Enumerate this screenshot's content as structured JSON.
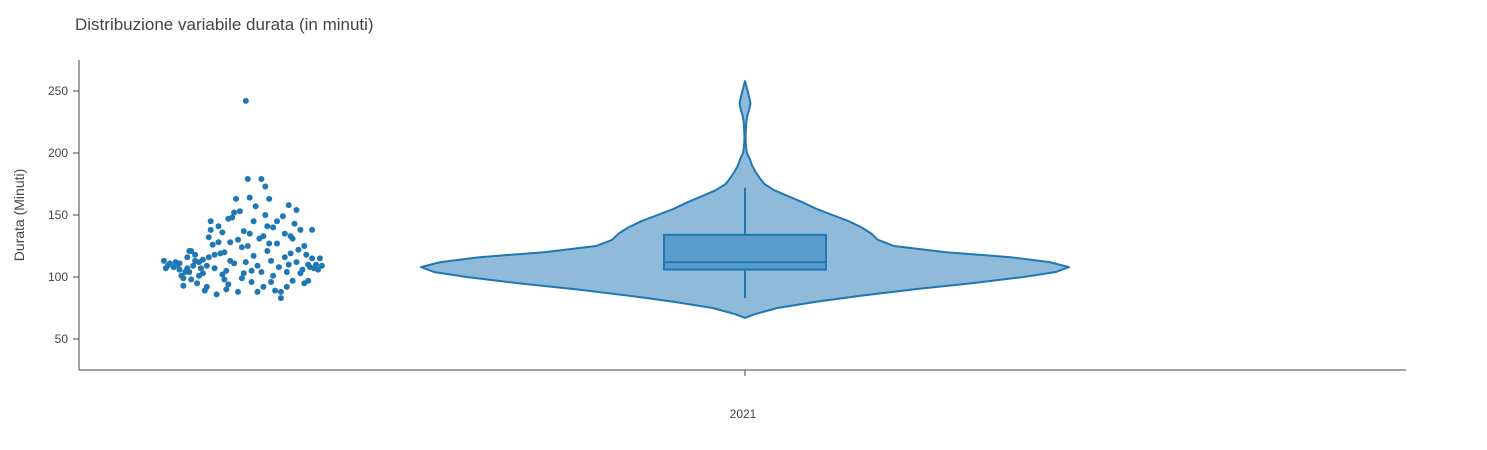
{
  "chart_data": {
    "type": "violin",
    "title": "Distribuzione variabile durata (in minuti)",
    "xlabel": "",
    "ylabel": "Durata (Minuti)",
    "categories": [
      "2021"
    ],
    "ylim": [
      25,
      275
    ],
    "yticks": [
      50,
      100,
      150,
      200,
      250
    ],
    "grid": false,
    "legend": "none",
    "colors": {
      "line": "#1f77b4",
      "violin_fill": "#8fbad9",
      "box_fill": "#5a9ccb",
      "points": "#1f77b4",
      "axis": "#444444"
    },
    "box": {
      "min": 83,
      "q1": 106,
      "median": 112,
      "q3": 134,
      "max": 172
    },
    "violin_density": [
      [
        67,
        0.0
      ],
      [
        70,
        0.03
      ],
      [
        75,
        0.1
      ],
      [
        80,
        0.22
      ],
      [
        85,
        0.36
      ],
      [
        90,
        0.52
      ],
      [
        95,
        0.7
      ],
      [
        100,
        0.86
      ],
      [
        104,
        0.96
      ],
      [
        108,
        1.0
      ],
      [
        112,
        0.94
      ],
      [
        116,
        0.82
      ],
      [
        120,
        0.62
      ],
      [
        125,
        0.46
      ],
      [
        130,
        0.41
      ],
      [
        135,
        0.39
      ],
      [
        140,
        0.36
      ],
      [
        145,
        0.32
      ],
      [
        150,
        0.27
      ],
      [
        155,
        0.22
      ],
      [
        160,
        0.18
      ],
      [
        165,
        0.135
      ],
      [
        170,
        0.09
      ],
      [
        175,
        0.06
      ],
      [
        180,
        0.045
      ],
      [
        185,
        0.032
      ],
      [
        190,
        0.022
      ],
      [
        195,
        0.015
      ],
      [
        200,
        0.006
      ],
      [
        205,
        0.003
      ],
      [
        210,
        0.002
      ],
      [
        215,
        0.002
      ],
      [
        220,
        0.003
      ],
      [
        225,
        0.004
      ],
      [
        230,
        0.007
      ],
      [
        235,
        0.013
      ],
      [
        240,
        0.017
      ],
      [
        245,
        0.013
      ],
      [
        250,
        0.008
      ],
      [
        255,
        0.003
      ],
      [
        258,
        0.0
      ]
    ],
    "points": [
      {
        "x": 0.02,
        "y": 113
      },
      {
        "x": 0.03,
        "y": 107
      },
      {
        "x": 0.04,
        "y": 109
      },
      {
        "x": 0.05,
        "y": 111
      },
      {
        "x": 0.07,
        "y": 108
      },
      {
        "x": 0.08,
        "y": 112
      },
      {
        "x": 0.09,
        "y": 110
      },
      {
        "x": 0.1,
        "y": 106
      },
      {
        "x": 0.11,
        "y": 101
      },
      {
        "x": 0.12,
        "y": 93
      },
      {
        "x": 0.13,
        "y": 104
      },
      {
        "x": 0.14,
        "y": 116
      },
      {
        "x": 0.15,
        "y": 121
      },
      {
        "x": 0.16,
        "y": 98
      },
      {
        "x": 0.17,
        "y": 109
      },
      {
        "x": 0.18,
        "y": 113
      },
      {
        "x": 0.19,
        "y": 95
      },
      {
        "x": 0.2,
        "y": 112
      },
      {
        "x": 0.21,
        "y": 107
      },
      {
        "x": 0.22,
        "y": 103
      },
      {
        "x": 0.23,
        "y": 89
      },
      {
        "x": 0.24,
        "y": 92
      },
      {
        "x": 0.25,
        "y": 132
      },
      {
        "x": 0.26,
        "y": 145
      },
      {
        "x": 0.27,
        "y": 126
      },
      {
        "x": 0.28,
        "y": 107
      },
      {
        "x": 0.29,
        "y": 86
      },
      {
        "x": 0.3,
        "y": 141
      },
      {
        "x": 0.31,
        "y": 119
      },
      {
        "x": 0.32,
        "y": 136
      },
      {
        "x": 0.33,
        "y": 98
      },
      {
        "x": 0.34,
        "y": 105
      },
      {
        "x": 0.35,
        "y": 94
      },
      {
        "x": 0.36,
        "y": 128
      },
      {
        "x": 0.37,
        "y": 148
      },
      {
        "x": 0.38,
        "y": 111
      },
      {
        "x": 0.39,
        "y": 163
      },
      {
        "x": 0.4,
        "y": 88
      },
      {
        "x": 0.41,
        "y": 153
      },
      {
        "x": 0.42,
        "y": 124
      },
      {
        "x": 0.43,
        "y": 103
      },
      {
        "x": 0.44,
        "y": 242
      },
      {
        "x": 0.45,
        "y": 179
      },
      {
        "x": 0.46,
        "y": 135
      },
      {
        "x": 0.47,
        "y": 96
      },
      {
        "x": 0.48,
        "y": 117
      },
      {
        "x": 0.49,
        "y": 157
      },
      {
        "x": 0.5,
        "y": 109
      },
      {
        "x": 0.51,
        "y": 131
      },
      {
        "x": 0.52,
        "y": 179
      },
      {
        "x": 0.53,
        "y": 92
      },
      {
        "x": 0.54,
        "y": 173
      },
      {
        "x": 0.55,
        "y": 121
      },
      {
        "x": 0.56,
        "y": 163
      },
      {
        "x": 0.57,
        "y": 113
      },
      {
        "x": 0.58,
        "y": 140
      },
      {
        "x": 0.59,
        "y": 89
      },
      {
        "x": 0.6,
        "y": 127
      },
      {
        "x": 0.61,
        "y": 108
      },
      {
        "x": 0.62,
        "y": 83
      },
      {
        "x": 0.63,
        "y": 149
      },
      {
        "x": 0.64,
        "y": 116
      },
      {
        "x": 0.65,
        "y": 104
      },
      {
        "x": 0.66,
        "y": 158
      },
      {
        "x": 0.67,
        "y": 133
      },
      {
        "x": 0.68,
        "y": 97
      },
      {
        "x": 0.69,
        "y": 143
      },
      {
        "x": 0.7,
        "y": 112
      },
      {
        "x": 0.71,
        "y": 122
      },
      {
        "x": 0.72,
        "y": 138
      },
      {
        "x": 0.73,
        "y": 106
      },
      {
        "x": 0.74,
        "y": 95
      },
      {
        "x": 0.75,
        "y": 118
      },
      {
        "x": 0.76,
        "y": 110
      },
      {
        "x": 0.77,
        "y": 108
      },
      {
        "x": 0.78,
        "y": 138
      },
      {
        "x": 0.79,
        "y": 107
      },
      {
        "x": 0.8,
        "y": 110
      },
      {
        "x": 0.81,
        "y": 106
      },
      {
        "x": 0.82,
        "y": 115
      },
      {
        "x": 0.83,
        "y": 109
      },
      {
        "x": 0.1,
        "y": 111
      },
      {
        "x": 0.12,
        "y": 99
      },
      {
        "x": 0.14,
        "y": 107
      },
      {
        "x": 0.16,
        "y": 121
      },
      {
        "x": 0.18,
        "y": 118
      },
      {
        "x": 0.2,
        "y": 101
      },
      {
        "x": 0.22,
        "y": 114
      },
      {
        "x": 0.24,
        "y": 109
      },
      {
        "x": 0.26,
        "y": 138
      },
      {
        "x": 0.28,
        "y": 118
      },
      {
        "x": 0.3,
        "y": 128
      },
      {
        "x": 0.32,
        "y": 102
      },
      {
        "x": 0.34,
        "y": 90
      },
      {
        "x": 0.36,
        "y": 113
      },
      {
        "x": 0.38,
        "y": 152
      },
      {
        "x": 0.4,
        "y": 130
      },
      {
        "x": 0.42,
        "y": 99
      },
      {
        "x": 0.44,
        "y": 112
      },
      {
        "x": 0.46,
        "y": 164
      },
      {
        "x": 0.48,
        "y": 145
      },
      {
        "x": 0.5,
        "y": 88
      },
      {
        "x": 0.52,
        "y": 104
      },
      {
        "x": 0.54,
        "y": 150
      },
      {
        "x": 0.56,
        "y": 127
      },
      {
        "x": 0.58,
        "y": 101
      },
      {
        "x": 0.6,
        "y": 145
      },
      {
        "x": 0.62,
        "y": 88
      },
      {
        "x": 0.64,
        "y": 135
      },
      {
        "x": 0.66,
        "y": 110
      },
      {
        "x": 0.68,
        "y": 131
      },
      {
        "x": 0.7,
        "y": 154
      },
      {
        "x": 0.72,
        "y": 103
      },
      {
        "x": 0.74,
        "y": 125
      },
      {
        "x": 0.76,
        "y": 97
      },
      {
        "x": 0.78,
        "y": 115
      },
      {
        "x": 0.15,
        "y": 104
      },
      {
        "x": 0.25,
        "y": 116
      },
      {
        "x": 0.35,
        "y": 147
      },
      {
        "x": 0.45,
        "y": 125
      },
      {
        "x": 0.55,
        "y": 141
      },
      {
        "x": 0.65,
        "y": 92
      },
      {
        "x": 0.33,
        "y": 120
      },
      {
        "x": 0.47,
        "y": 105
      },
      {
        "x": 0.53,
        "y": 133
      },
      {
        "x": 0.67,
        "y": 119
      },
      {
        "x": 0.57,
        "y": 96
      },
      {
        "x": 0.43,
        "y": 137
      }
    ]
  }
}
